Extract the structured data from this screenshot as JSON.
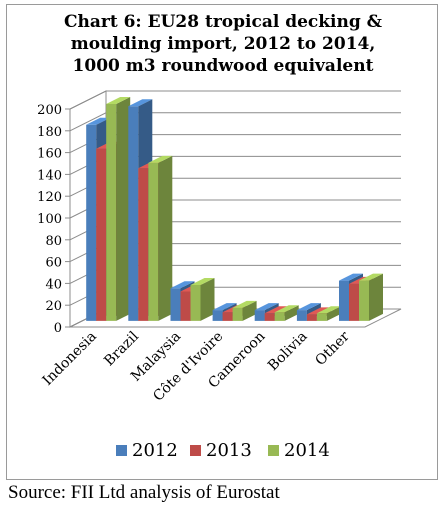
{
  "title_lines": [
    "Chart 6: EU28 tropical decking &",
    "moulding import, 2012 to 2014,",
    "1000 m3 roundwood equivalent"
  ],
  "source": "Source: FII Ltd analysis of Eurostat",
  "chart_data": {
    "type": "bar",
    "title": "Chart 6: EU28 tropical decking & moulding import, 2012 to 2014, 1000 m3 roundwood equivalent",
    "categories": [
      "Indonesia",
      "Brazil",
      "Malaysia",
      "Côte d'Ivoire",
      "Cameroon",
      "Bolivia",
      "Other"
    ],
    "series": [
      {
        "name": "2012",
        "color": "#4a7ebb",
        "values": [
          180,
          197,
          30,
          10,
          10,
          10,
          37
        ]
      },
      {
        "name": "2013",
        "color": "#be4b48",
        "values": [
          158,
          140,
          27,
          8,
          7,
          6,
          34
        ]
      },
      {
        "name": "2014",
        "color": "#98b954",
        "values": [
          199,
          145,
          33,
          12,
          8,
          7,
          37
        ]
      }
    ],
    "yticks": [
      "0",
      "20",
      "40",
      "60",
      "80",
      "100",
      "120",
      "140",
      "160",
      "180",
      "200"
    ],
    "ylim": [
      0,
      200
    ],
    "grid": true,
    "legend_position": "bottom",
    "three_d": true
  }
}
